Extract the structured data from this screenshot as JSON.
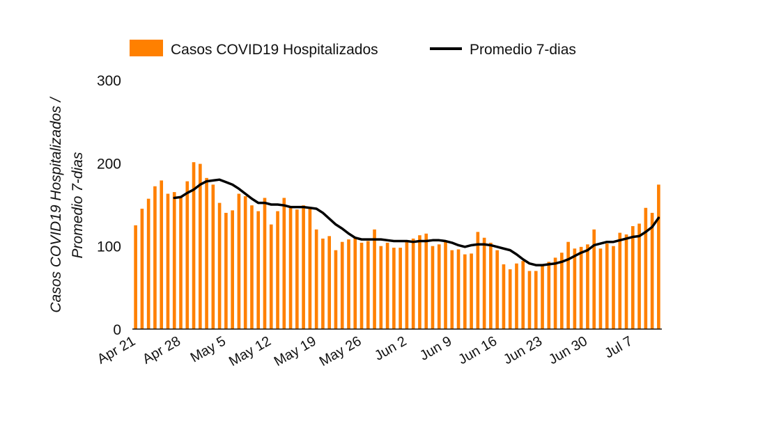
{
  "chart_data": {
    "type": "bar",
    "title": "",
    "xlabel": "",
    "ylabel_lines": [
      "Casos COVID19 Hospitalizados /",
      "Promedio 7-dias"
    ],
    "ylim": [
      0,
      300
    ],
    "yticks": [
      0,
      100,
      200,
      300
    ],
    "x_tick_labels": [
      "Apr 21",
      "Apr 28",
      "May 5",
      "May 12",
      "May 19",
      "May 26",
      "Jun 2",
      "Jun 9",
      "Jun 16",
      "Jun 23",
      "Jun 30",
      "Jul 7"
    ],
    "grid": false,
    "legend_position": "top",
    "colors": {
      "bars": "#ff8000",
      "line": "#000000"
    },
    "series": [
      {
        "name": "Casos COVID19 Hospitalizados",
        "type": "bar",
        "values": [
          125,
          145,
          157,
          172,
          179,
          163,
          165,
          160,
          178,
          201,
          199,
          182,
          174,
          152,
          140,
          143,
          163,
          160,
          149,
          142,
          158,
          126,
          142,
          158,
          146,
          144,
          149,
          147,
          120,
          109,
          112,
          95,
          105,
          108,
          111,
          104,
          106,
          120,
          100,
          104,
          98,
          98,
          105,
          109,
          113,
          115,
          100,
          102,
          106,
          95,
          96,
          90,
          91,
          117,
          110,
          104,
          95,
          78,
          72,
          79,
          82,
          70,
          70,
          77,
          81,
          86,
          92,
          105,
          97,
          99,
          102,
          120,
          97,
          103,
          100,
          116,
          114,
          124,
          127,
          146,
          140,
          174
        ]
      },
      {
        "name": "Promedio 7-dias",
        "type": "line",
        "start_index": 6,
        "values": [
          158,
          159,
          164,
          168,
          174,
          178,
          179,
          180,
          177,
          174,
          169,
          163,
          157,
          152,
          152,
          150,
          150,
          149,
          147,
          147,
          147,
          146,
          145,
          140,
          133,
          126,
          121,
          115,
          110,
          108,
          108,
          108,
          108,
          107,
          106,
          106,
          106,
          105,
          106,
          106,
          107,
          107,
          106,
          104,
          101,
          99,
          101,
          102,
          102,
          101,
          99,
          97,
          95,
          90,
          84,
          79,
          77,
          77,
          78,
          79,
          81,
          84,
          88,
          92,
          95,
          101,
          103,
          105,
          105,
          107,
          109,
          111,
          112,
          117,
          123,
          134
        ]
      }
    ]
  }
}
